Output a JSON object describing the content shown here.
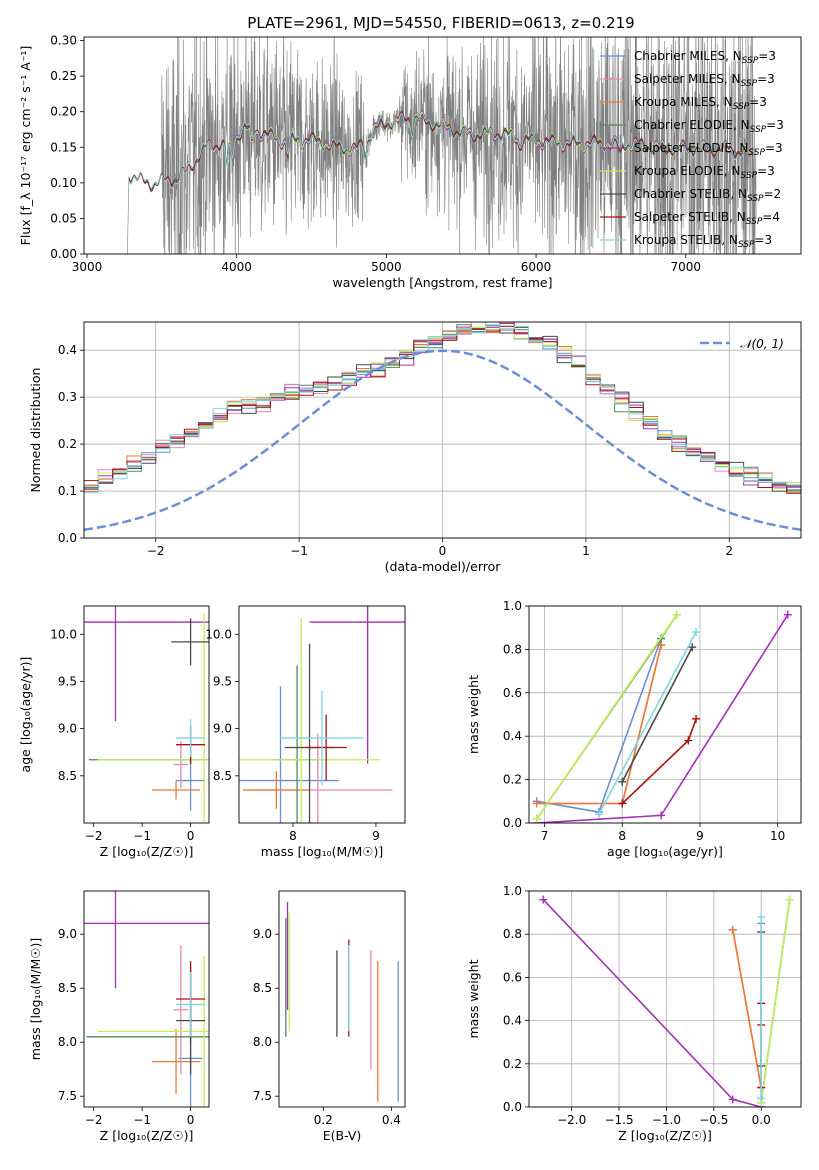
{
  "colors": {
    "Chabrier MILES": "#6a8fd6",
    "Salpeter MILES": "#e38ab0",
    "Kroupa MILES": "#ec7a34",
    "Chabrier ELODIE": "#4f8a60",
    "Salpeter ELODIE": "#a52fb8",
    "Kroupa ELODIE": "#c4ee5a",
    "Chabrier STELIB": "#4a4a4a",
    "Salpeter STELIB": "#a81212",
    "Kroupa STELIB": "#7fd6e3",
    "data": "#808080",
    "normal": "#6a8fd6"
  },
  "chart_data": [
    {
      "type": "line",
      "title": "PLATE=2961, MJD=54550, FIBERID=0613, z=0.219",
      "xlabel": "wavelength [Angstrom, rest frame]",
      "ylabel": "Flux [f_λ 10⁻¹⁷ erg cm⁻² s⁻¹ A⁻¹]",
      "xlim": [
        2980,
        7770
      ],
      "ylim": [
        0,
        0.305
      ],
      "xticks": [
        "3000",
        "4000",
        "5000",
        "6000",
        "7000"
      ],
      "yticks": [
        "0.00",
        "0.05",
        "0.10",
        "0.15",
        "0.20",
        "0.25",
        "0.30"
      ],
      "legend_loc": "right",
      "legend": [
        {
          "name": "Chabrier MILES, N",
          "sub": "SSP",
          "n": "=3"
        },
        {
          "name": "Salpeter MILES, N",
          "sub": "SSP",
          "n": "=3"
        },
        {
          "name": "Kroupa MILES, N",
          "sub": "SSP",
          "n": "=3"
        },
        {
          "name": "Chabrier ELODIE, N",
          "sub": "SSP",
          "n": "=3"
        },
        {
          "name": "Salpeter ELODIE, N",
          "sub": "SSP",
          "n": "=3"
        },
        {
          "name": "Kroupa ELODIE, N",
          "sub": "SSP",
          "n": "=3"
        },
        {
          "name": "Chabrier STELIB, N",
          "sub": "SSP",
          "n": "=2"
        },
        {
          "name": "Salpeter STELIB, N",
          "sub": "SSP",
          "n": "=4"
        },
        {
          "name": "Kroupa STELIB, N",
          "sub": "SSP",
          "n": "=3"
        }
      ],
      "spectrum": {
        "model_start": 3280,
        "model_end": 7450,
        "miles_start": 3530,
        "elodie_start": 3900,
        "noise_region": [
          3500,
          7470
        ],
        "continuum": [
          [
            3280,
            0.112
          ],
          [
            3450,
            0.098
          ],
          [
            3600,
            0.105
          ],
          [
            3800,
            0.15
          ],
          [
            3950,
            0.155
          ],
          [
            4050,
            0.178
          ],
          [
            4300,
            0.16
          ],
          [
            4500,
            0.16
          ],
          [
            4800,
            0.145
          ],
          [
            4950,
            0.182
          ],
          [
            5200,
            0.192
          ],
          [
            5500,
            0.17
          ],
          [
            5800,
            0.168
          ],
          [
            6000,
            0.158
          ],
          [
            6300,
            0.155
          ],
          [
            6600,
            0.155
          ],
          [
            6900,
            0.148
          ],
          [
            7200,
            0.148
          ],
          [
            7450,
            0.14
          ]
        ]
      }
    },
    {
      "type": "histogram",
      "xlabel": "(data-model)/error",
      "ylabel": "Normed distribution",
      "xlim": [
        -2.5,
        2.5
      ],
      "ylim": [
        0,
        0.46
      ],
      "xticks": [
        "−2",
        "−1",
        "0",
        "1",
        "2"
      ],
      "yticks": [
        "0.0",
        "0.1",
        "0.2",
        "0.3",
        "0.4"
      ],
      "legend": "𝒩(0, 1)",
      "bin_width": 0.1
    },
    {
      "type": "scatter",
      "xlabel": "Z [log₁₀(Z/Z☉)]",
      "ylabel": "age  [log₁₀(age/yr)]",
      "xlim": [
        -2.2,
        0.38
      ],
      "ylim": [
        8.0,
        10.3
      ],
      "xticks": [
        "−2",
        "−1",
        "0"
      ],
      "yticks": [
        "8.5",
        "9.0",
        "9.5",
        "10.0"
      ],
      "crosses": [
        {
          "m": "Chabrier MILES",
          "x": 0.0,
          "y": 8.45,
          "xerr": 0.3,
          "yerr": 0.32
        },
        {
          "m": "Salpeter MILES",
          "x": -0.2,
          "y": 8.62,
          "xerr": 0.15,
          "yerr": 0.25
        },
        {
          "m": "Kroupa MILES",
          "x": -0.3,
          "y": 8.35,
          "xerr": 0.5,
          "yerr": 0.1
        },
        {
          "m": "Chabrier ELODIE",
          "x": 0.0,
          "y": 8.67,
          "xerr": 2.1,
          "yerr": 0.05
        },
        {
          "m": "Salpeter ELODIE",
          "x": -1.55,
          "y": 10.13,
          "xerr": 2.0,
          "yerr": 1.05
        },
        {
          "m": "Kroupa ELODIE",
          "x": 0.28,
          "y": 8.67,
          "xerr": 2.2,
          "yerr": 1.55
        },
        {
          "m": "Chabrier STELIB",
          "x": 0.0,
          "y": 9.92,
          "xerr": 0.4,
          "yerr": 0.25
        },
        {
          "m": "Salpeter STELIB",
          "x": 0.0,
          "y": 8.83,
          "xerr": 0.3,
          "yerr": 0.2
        },
        {
          "m": "Kroupa STELIB",
          "x": 0.0,
          "y": 8.9,
          "xerr": 0.3,
          "yerr": 0.2
        }
      ]
    },
    {
      "type": "scatter",
      "xlabel": "mass [log₁₀(M/M☉)]",
      "ylabel": "",
      "xlim": [
        7.35,
        9.35
      ],
      "ylim": [
        8.0,
        10.3
      ],
      "xticks": [
        "8",
        "9"
      ],
      "yticks": [
        "8.5",
        "9.0",
        "9.5",
        "10.0"
      ],
      "crosses": [
        {
          "m": "Chabrier MILES",
          "x": 7.85,
          "y": 8.45,
          "xerr": 0.7,
          "yerr": 1.0
        },
        {
          "m": "Salpeter MILES",
          "x": 8.3,
          "y": 8.35,
          "xerr": 0.9,
          "yerr": 0.6
        },
        {
          "m": "Kroupa MILES",
          "x": 7.8,
          "y": 8.35,
          "xerr": 0.4,
          "yerr": 0.2
        },
        {
          "m": "Chabrier ELODIE",
          "x": 8.05,
          "y": 8.67,
          "xerr": 0.3,
          "yerr": 1.0
        },
        {
          "m": "Salpeter ELODIE",
          "x": 8.9,
          "y": 10.13,
          "xerr": 0.7,
          "yerr": 1.5
        },
        {
          "m": "Kroupa ELODIE",
          "x": 8.1,
          "y": 8.67,
          "xerr": 0.95,
          "yerr": 1.5
        },
        {
          "m": "Chabrier STELIB",
          "x": 8.2,
          "y": 8.8,
          "xerr": 0.3,
          "yerr": 1.1
        },
        {
          "m": "Salpeter STELIB",
          "x": 8.4,
          "y": 8.8,
          "xerr": 0.25,
          "yerr": 0.35
        },
        {
          "m": "Kroupa STELIB",
          "x": 8.35,
          "y": 8.9,
          "xerr": 0.5,
          "yerr": 0.5
        }
      ]
    },
    {
      "type": "line",
      "xlabel": "age  [log₁₀(age/yr)]",
      "ylabel": "mass weight",
      "xlim": [
        6.8,
        10.3
      ],
      "ylim": [
        0,
        1.0
      ],
      "xticks": [
        "7",
        "8",
        "9",
        "10"
      ],
      "yticks": [
        "0.0",
        "0.2",
        "0.4",
        "0.6",
        "0.8",
        "1.0"
      ],
      "series": [
        {
          "name": "Chabrier MILES",
          "points": [
            [
              6.9,
              0.1
            ],
            [
              7.7,
              0.05
            ],
            [
              8.5,
              0.85
            ]
          ]
        },
        {
          "name": "Salpeter MILES",
          "points": [
            [
              6.9,
              0.09
            ],
            [
              8.0,
              0.09
            ],
            [
              8.5,
              0.82
            ]
          ]
        },
        {
          "name": "Kroupa MILES",
          "points": [
            [
              6.9,
              0.09
            ],
            [
              8.0,
              0.09
            ],
            [
              8.5,
              0.82
            ]
          ]
        },
        {
          "name": "Chabrier ELODIE",
          "points": [
            [
              6.9,
              0.02
            ],
            [
              8.5,
              0.85
            ],
            [
              8.7,
              0.96
            ]
          ]
        },
        {
          "name": "Salpeter ELODIE",
          "points": [
            [
              6.9,
              0.0
            ],
            [
              8.5,
              0.035
            ],
            [
              10.13,
              0.96
            ]
          ]
        },
        {
          "name": "Kroupa ELODIE",
          "points": [
            [
              6.9,
              0.02
            ],
            [
              8.7,
              0.96
            ]
          ]
        },
        {
          "name": "Chabrier STELIB",
          "points": [
            [
              8.0,
              0.19
            ],
            [
              8.9,
              0.81
            ]
          ]
        },
        {
          "name": "Salpeter STELIB",
          "points": [
            [
              8.0,
              0.09
            ],
            [
              8.85,
              0.38
            ],
            [
              8.95,
              0.48
            ]
          ]
        },
        {
          "name": "Kroupa STELIB",
          "points": [
            [
              7.7,
              0.04
            ],
            [
              8.95,
              0.88
            ]
          ]
        }
      ]
    },
    {
      "type": "scatter",
      "xlabel": "Z [log₁₀(Z/Z☉)]",
      "ylabel": "mass [log₁₀(M/M☉)]",
      "xlim": [
        -2.2,
        0.38
      ],
      "ylim": [
        7.4,
        9.4
      ],
      "xticks": [
        "−2",
        "−1",
        "0"
      ],
      "yticks": [
        "7.5",
        "8.0",
        "8.5",
        "9.0"
      ],
      "crosses": [
        {
          "m": "Chabrier MILES",
          "x": 0.0,
          "y": 7.85,
          "xerr": 0.25,
          "yerr": 0.6
        },
        {
          "m": "Salpeter MILES",
          "x": -0.2,
          "y": 8.3,
          "xerr": 0.15,
          "yerr": 0.6
        },
        {
          "m": "Kroupa MILES",
          "x": -0.3,
          "y": 7.82,
          "xerr": 0.5,
          "yerr": 0.3
        },
        {
          "m": "Chabrier ELODIE",
          "x": 0.0,
          "y": 8.05,
          "xerr": 2.15,
          "yerr": 0.05
        },
        {
          "m": "Salpeter ELODIE",
          "x": -1.55,
          "y": 9.1,
          "xerr": 2.0,
          "yerr": 0.6
        },
        {
          "m": "Kroupa ELODIE",
          "x": 0.28,
          "y": 8.1,
          "xerr": 2.2,
          "yerr": 0.7
        },
        {
          "m": "Chabrier STELIB",
          "x": 0.0,
          "y": 8.2,
          "xerr": 0.3,
          "yerr": 0.5
        },
        {
          "m": "Salpeter STELIB",
          "x": 0.0,
          "y": 8.4,
          "xerr": 0.3,
          "yerr": 0.35
        },
        {
          "m": "Kroupa STELIB",
          "x": 0.0,
          "y": 8.35,
          "xerr": 0.3,
          "yerr": 0.3
        }
      ]
    },
    {
      "type": "scatter",
      "xlabel": "E(B-V)",
      "ylabel": "",
      "xlim": [
        0.07,
        0.44
      ],
      "ylim": [
        7.4,
        9.4
      ],
      "xticks": [
        "0.2",
        "0.4"
      ],
      "yticks": [
        "7.5",
        "8.0",
        "8.5",
        "9.0"
      ],
      "crosses": [
        {
          "m": "Chabrier MILES",
          "x": 0.42,
          "y": 8.1,
          "xerr": 0.0,
          "yerr": 0.65
        },
        {
          "m": "Salpeter MILES",
          "x": 0.34,
          "y": 8.3,
          "xerr": 0.0,
          "yerr": 0.55
        },
        {
          "m": "Kroupa MILES",
          "x": 0.36,
          "y": 8.1,
          "xerr": 0.0,
          "yerr": 0.65
        },
        {
          "m": "Chabrier ELODIE",
          "x": 0.09,
          "y": 8.6,
          "xerr": 0.0,
          "yerr": 0.55
        },
        {
          "m": "Salpeter ELODIE",
          "x": 0.095,
          "y": 8.8,
          "xerr": 0.0,
          "yerr": 0.5
        },
        {
          "m": "Kroupa ELODIE",
          "x": 0.1,
          "y": 8.65,
          "xerr": 0.0,
          "yerr": 0.55
        },
        {
          "m": "Chabrier STELIB",
          "x": 0.24,
          "y": 8.45,
          "xerr": 0.0,
          "yerr": 0.4
        },
        {
          "m": "Salpeter STELIB",
          "x": 0.275,
          "y": 8.5,
          "xerr": 0.0,
          "yerr": 0.45
        },
        {
          "m": "Kroupa STELIB",
          "x": 0.275,
          "y": 8.5,
          "xerr": 0.0,
          "yerr": 0.4
        }
      ]
    },
    {
      "type": "line",
      "xlabel": "Z [log₁₀(Z/Z☉)]",
      "ylabel": "mass weight",
      "xlim": [
        -2.45,
        0.42
      ],
      "ylim": [
        0,
        1.0
      ],
      "xticks": [
        "−2.0",
        "−1.5",
        "−1.0",
        "−0.5",
        "0.0"
      ],
      "yticks": [
        "0.0",
        "0.2",
        "0.4",
        "0.6",
        "0.8",
        "1.0"
      ],
      "series": [
        {
          "name": "Chabrier MILES",
          "points": [
            [
              0.0,
              0.0
            ],
            [
              0.0,
              0.85
            ]
          ]
        },
        {
          "name": "Salpeter MILES",
          "points": [
            [
              -0.3,
              0.82
            ],
            [
              0.0,
              0.09
            ]
          ]
        },
        {
          "name": "Kroupa MILES",
          "points": [
            [
              -0.3,
              0.82
            ],
            [
              0.0,
              0.09
            ]
          ]
        },
        {
          "name": "Chabrier ELODIE",
          "points": [
            [
              0.0,
              0.02
            ],
            [
              0.3,
              0.96
            ]
          ]
        },
        {
          "name": "Salpeter ELODIE",
          "points": [
            [
              -2.3,
              0.96
            ],
            [
              -0.3,
              0.035
            ],
            [
              0.0,
              0.0
            ]
          ]
        },
        {
          "name": "Kroupa ELODIE",
          "points": [
            [
              0.0,
              0.02
            ],
            [
              0.3,
              0.96
            ]
          ]
        },
        {
          "name": "Chabrier STELIB",
          "points": [
            [
              0.0,
              0.19
            ],
            [
              0.0,
              0.81
            ]
          ]
        },
        {
          "name": "Salpeter STELIB",
          "points": [
            [
              0.0,
              0.09
            ],
            [
              0.0,
              0.38
            ],
            [
              0.0,
              0.48
            ]
          ]
        },
        {
          "name": "Kroupa STELIB",
          "points": [
            [
              0.0,
              0.04
            ],
            [
              0.0,
              0.88
            ]
          ]
        }
      ]
    }
  ]
}
